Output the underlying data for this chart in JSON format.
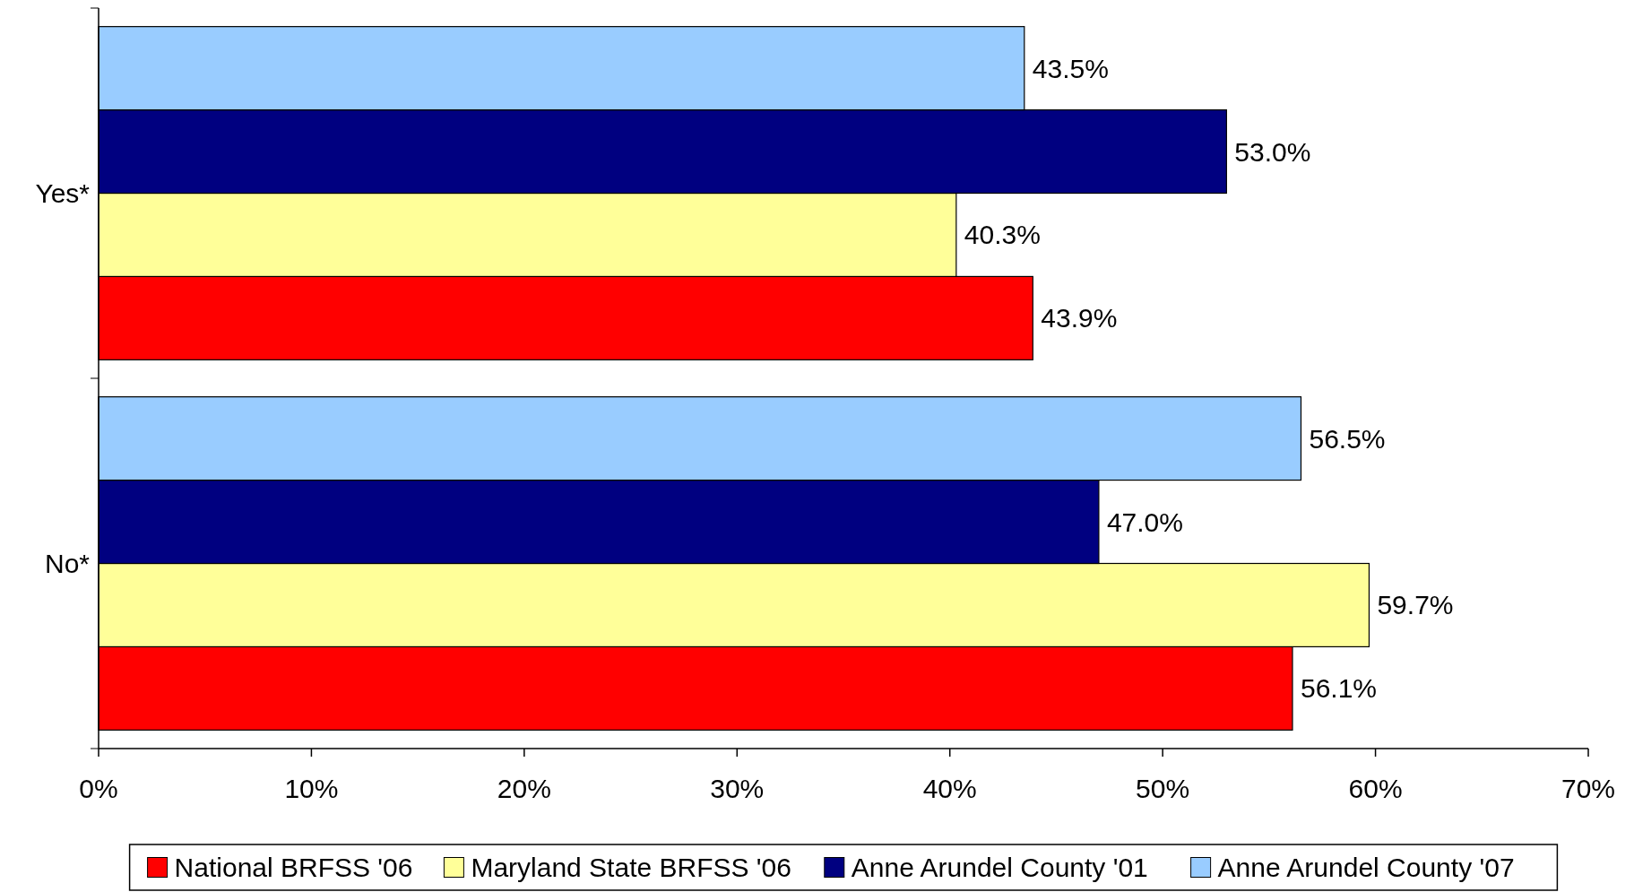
{
  "chart_data": {
    "type": "bar",
    "orientation": "horizontal",
    "categories": [
      "Yes*",
      "No*"
    ],
    "series": [
      {
        "name": "National BRFSS '06",
        "color": "#ff0000",
        "values": [
          43.9,
          56.1
        ],
        "value_labels": [
          "43.9%",
          "56.1%"
        ]
      },
      {
        "name": "Maryland State BRFSS '06",
        "color": "#ffff99",
        "values": [
          40.3,
          59.7
        ],
        "value_labels": [
          "40.3%",
          "59.7%"
        ]
      },
      {
        "name": "Anne Arundel County '01",
        "color": "#000080",
        "values": [
          53.0,
          47.0
        ],
        "value_labels": [
          "53.0%",
          "47.0%"
        ]
      },
      {
        "name": "Anne Arundel County '07",
        "color": "#99ccff",
        "values": [
          43.5,
          56.5
        ],
        "value_labels": [
          "43.5%",
          "56.5%"
        ]
      }
    ],
    "xlim": [
      0,
      70
    ],
    "xticks": [
      {
        "value": 0,
        "label": "0%"
      },
      {
        "value": 10,
        "label": "10%"
      },
      {
        "value": 20,
        "label": "20%"
      },
      {
        "value": 30,
        "label": "30%"
      },
      {
        "value": 40,
        "label": "40%"
      },
      {
        "value": 50,
        "label": "50%"
      },
      {
        "value": 60,
        "label": "60%"
      },
      {
        "value": 70,
        "label": "70%"
      }
    ],
    "grid": false,
    "legend": "bottom"
  }
}
